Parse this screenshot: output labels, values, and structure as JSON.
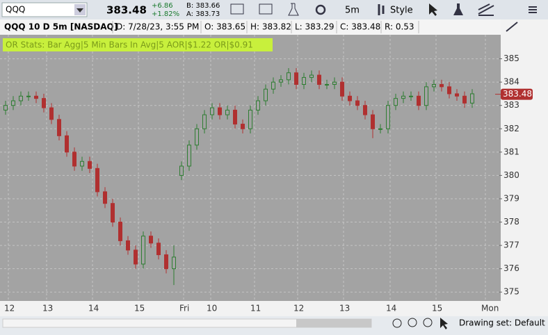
{
  "toolbar": {
    "symbol": "QQQ",
    "last": "383.48",
    "change": "+6.86",
    "change_pct": "+1.82%",
    "bid": "B: 383.66",
    "ask": "A: 383.73",
    "aggregation": "5m",
    "style": "Style"
  },
  "header": {
    "title": "QQQ 10 D 5m [NASDAQ]",
    "date": "D: 7/28/23, 3:55 PM",
    "open": "O: 383.65",
    "high": "H: 383.82",
    "low": "L: 383.29",
    "close": "C: 383.48",
    "range": "R: 0.53"
  },
  "study_label": "OR Stats:  Bar Agg|5 Min  Bars In Avg|5  AOR|$1.22  OR|$0.91",
  "footer": {
    "drawing_set": "Drawing set: Default"
  },
  "chart_data": {
    "type": "candlestick",
    "up_color": "#2e7d32",
    "down_color": "#b03030",
    "grid": true,
    "categories": [
      "12",
      "13",
      "14",
      "15",
      "Fri",
      "10",
      "11",
      "12",
      "13",
      "14",
      "15",
      "Mon"
    ],
    "open": [
      382.8,
      383.0,
      383.2,
      383.4,
      383.4,
      383.3,
      382.9,
      382.4,
      381.7,
      381.0,
      380.4,
      380.6,
      380.3,
      379.3,
      378.8,
      378.0,
      377.2,
      376.8,
      376.2,
      377.4,
      377.1,
      376.6,
      376.0,
      380.0,
      380.4,
      381.3,
      382.0,
      382.6,
      382.9,
      382.6,
      382.8,
      382.2,
      382.0,
      382.8,
      383.2,
      383.7,
      384.0,
      384.1,
      384.4,
      383.9,
      384.2,
      384.3,
      383.9,
      383.9,
      384.0,
      383.4,
      383.2,
      383.0,
      382.6,
      382.0,
      382.0,
      383.0,
      383.3,
      383.4,
      383.4,
      383.0,
      383.8,
      383.9,
      383.8,
      383.5,
      383.4,
      383.1
    ],
    "high": [
      383.2,
      383.4,
      383.6,
      383.6,
      383.6,
      383.5,
      383.1,
      382.6,
      381.9,
      381.2,
      380.8,
      380.8,
      380.5,
      379.5,
      379.0,
      378.2,
      377.4,
      377.0,
      377.6,
      377.6,
      377.3,
      376.8,
      377.0,
      380.6,
      381.5,
      382.2,
      382.8,
      383.1,
      383.1,
      383.0,
      383.0,
      382.4,
      383.0,
      383.4,
      383.9,
      384.2,
      384.3,
      384.6,
      384.6,
      384.4,
      384.5,
      384.5,
      384.1,
      384.2,
      384.2,
      383.6,
      383.4,
      383.2,
      382.8,
      382.2,
      383.2,
      383.5,
      383.6,
      383.6,
      383.6,
      384.0,
      384.1,
      384.1,
      384.0,
      383.7,
      383.6,
      383.7
    ],
    "low": [
      382.6,
      382.8,
      383.0,
      383.2,
      383.1,
      382.7,
      382.2,
      381.5,
      380.8,
      380.2,
      380.2,
      380.1,
      379.1,
      378.6,
      377.8,
      377.0,
      376.6,
      376.0,
      376.0,
      376.9,
      376.4,
      375.8,
      375.3,
      379.8,
      380.2,
      381.1,
      381.8,
      382.4,
      382.4,
      382.4,
      382.0,
      381.8,
      381.8,
      382.6,
      383.0,
      383.5,
      383.8,
      383.9,
      383.7,
      383.7,
      384.0,
      383.7,
      383.7,
      383.7,
      383.2,
      383.0,
      382.8,
      382.4,
      381.6,
      381.8,
      381.8,
      382.8,
      383.1,
      383.2,
      382.8,
      382.8,
      383.6,
      383.6,
      383.3,
      383.2,
      382.9,
      382.9
    ],
    "close": [
      383.0,
      383.2,
      383.4,
      383.4,
      383.3,
      382.9,
      382.4,
      381.7,
      381.0,
      380.4,
      380.6,
      380.3,
      379.3,
      378.8,
      378.0,
      377.2,
      376.8,
      376.2,
      377.4,
      377.1,
      376.6,
      376.0,
      376.5,
      380.4,
      381.3,
      382.0,
      382.6,
      382.9,
      382.6,
      382.8,
      382.2,
      382.0,
      382.8,
      383.2,
      383.7,
      384.0,
      384.1,
      384.4,
      383.9,
      384.2,
      384.3,
      383.9,
      383.9,
      384.0,
      383.4,
      383.2,
      383.0,
      382.6,
      382.0,
      382.0,
      383.0,
      383.3,
      383.4,
      383.4,
      383.0,
      383.8,
      383.9,
      383.8,
      383.5,
      383.4,
      383.1,
      383.5
    ],
    "last_price": 383.48,
    "last_price_label": "383.48",
    "ylim": [
      374.62,
      386.03
    ],
    "yticks": [
      375,
      376,
      377,
      378,
      379,
      380,
      381,
      382,
      383,
      384,
      385
    ]
  }
}
